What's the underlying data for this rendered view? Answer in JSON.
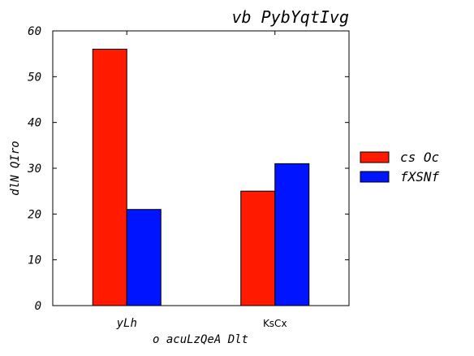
{
  "chart_data": {
    "type": "bar",
    "title": "vb PybYqtIvg",
    "xlabel": "o acuLzQeA Dlt",
    "ylabel": "dlN QIro",
    "categories": [
      "yLh",
      "KsCx"
    ],
    "series": [
      {
        "name": "cs Oc",
        "values": [
          56,
          25
        ],
        "color": "#ff1a00"
      },
      {
        "name": "fXSNf",
        "values": [
          21,
          31
        ],
        "color": "#0014ff"
      }
    ],
    "ylim": [
      0,
      60
    ],
    "yticks": [
      0,
      10,
      20,
      30,
      40,
      50,
      60
    ],
    "grid": false,
    "legend_position": "right"
  }
}
